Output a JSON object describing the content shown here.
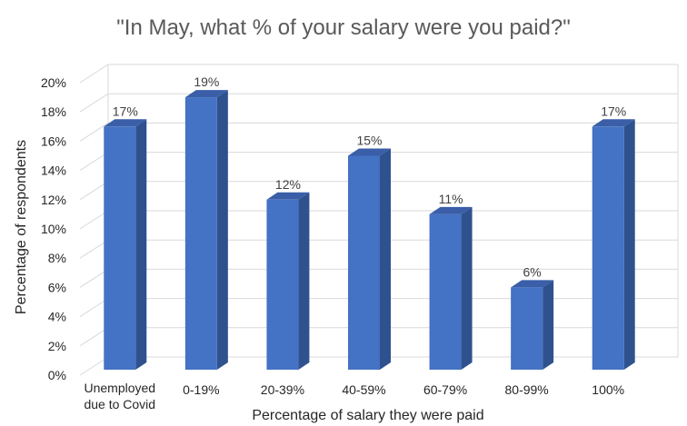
{
  "chart_data": {
    "type": "bar",
    "title": "\"In May, what % of your salary were you paid?\"",
    "xlabel": "Percentage of salary they were paid",
    "ylabel": "Percentage of respondents",
    "categories": [
      [
        "Unemployed",
        "due to Covid"
      ],
      [
        "0-19%"
      ],
      [
        "20-39%"
      ],
      [
        "40-59%"
      ],
      [
        "60-79%"
      ],
      [
        "80-99%"
      ],
      [
        "100%"
      ]
    ],
    "values": [
      17,
      19,
      12,
      15,
      11,
      6,
      17
    ],
    "data_labels": [
      "17%",
      "19%",
      "12%",
      "15%",
      "11%",
      "6%",
      "17%"
    ],
    "y_ticks": [
      "0%",
      "2%",
      "4%",
      "6%",
      "8%",
      "10%",
      "12%",
      "14%",
      "16%",
      "18%",
      "20%"
    ],
    "ylim": [
      0,
      20
    ],
    "grid": true,
    "style": "3d-column",
    "colors": {
      "bar_front": "#4472C4",
      "bar_side": "#2F528F",
      "bar_top": "#3A5FA8",
      "grid": "#D9D9D9"
    }
  }
}
